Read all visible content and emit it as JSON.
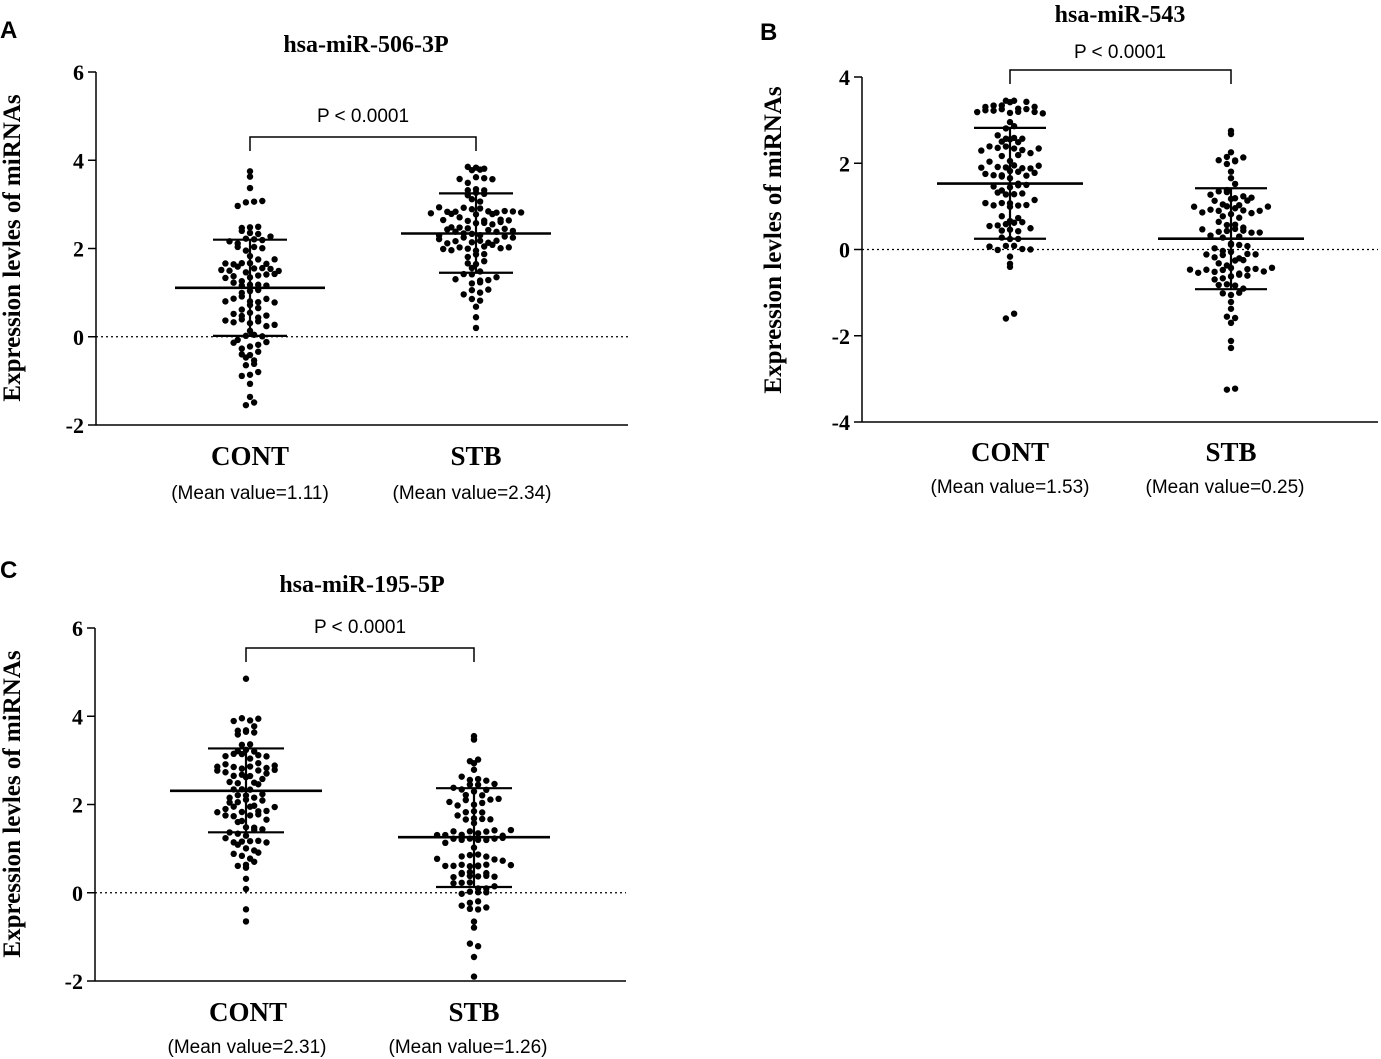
{
  "colors": {
    "ink": "#000000",
    "background": "#ffffff"
  },
  "chart_data": [
    {
      "panel": "A",
      "type": "scatter",
      "title": "hsa-miR-506-3P",
      "ylabel": "Expression levles of miRNAs",
      "ylim": [
        -2,
        6
      ],
      "yticks": [
        -2,
        0,
        2,
        4,
        6
      ],
      "categories": [
        "CONT",
        "STB"
      ],
      "mean_labels": [
        "(Mean value=1.11)",
        "(Mean value=2.34)"
      ],
      "p_label": "P < 0.0001",
      "reference_line": 0,
      "series": [
        {
          "name": "CONT",
          "mean": 1.11,
          "sd_low": 0.02,
          "sd_high": 2.2,
          "min": -1.55,
          "max": 3.75,
          "n": 100
        },
        {
          "name": "STB",
          "mean": 2.34,
          "sd_low": 1.45,
          "sd_high": 3.25,
          "min": 0.2,
          "max": 3.85,
          "n": 100
        }
      ]
    },
    {
      "panel": "B",
      "type": "scatter",
      "title": "hsa-miR-543",
      "ylabel": "Expression levles of miRNAs",
      "ylim": [
        -4,
        4
      ],
      "yticks": [
        -4,
        -2,
        0,
        2,
        4
      ],
      "categories": [
        "CONT",
        "STB"
      ],
      "mean_labels": [
        "(Mean value=1.53)",
        "(Mean value=0.25)"
      ],
      "p_label": "P < 0.0001",
      "reference_line": 0,
      "series": [
        {
          "name": "CONT",
          "mean": 1.53,
          "sd_low": 0.25,
          "sd_high": 2.82,
          "min": -1.6,
          "max": 3.45,
          "n": 100
        },
        {
          "name": "STB",
          "mean": 0.25,
          "sd_low": -0.92,
          "sd_high": 1.42,
          "min": -3.25,
          "max": 2.75,
          "n": 100
        }
      ]
    },
    {
      "panel": "C",
      "type": "scatter",
      "title": "hsa-miR-195-5P",
      "ylabel": "Expression levles of miRNAs",
      "ylim": [
        -2,
        6
      ],
      "yticks": [
        -2,
        0,
        2,
        4,
        6
      ],
      "categories": [
        "CONT",
        "STB"
      ],
      "mean_labels": [
        "(Mean value=2.31)",
        "(Mean value=1.26)"
      ],
      "p_label": "P < 0.0001",
      "reference_line": 0,
      "series": [
        {
          "name": "CONT",
          "mean": 2.31,
          "sd_low": 1.37,
          "sd_high": 3.27,
          "min": -0.65,
          "max": 4.85,
          "n": 100
        },
        {
          "name": "STB",
          "mean": 1.26,
          "sd_low": 0.13,
          "sd_high": 2.37,
          "min": -1.9,
          "max": 3.55,
          "n": 100
        }
      ]
    }
  ]
}
